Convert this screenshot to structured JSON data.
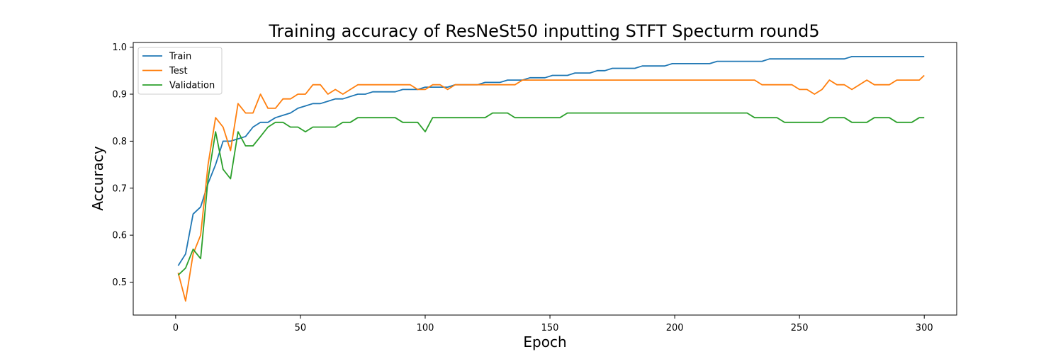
{
  "chart_data": {
    "type": "line",
    "title": "Training accuracy of ResNeSt50 inputting STFT Specturm round5",
    "xlabel": "Epoch",
    "ylabel": "Accuracy",
    "xlim": [
      -17,
      313
    ],
    "ylim": [
      0.43,
      1.01
    ],
    "xticks": [
      0,
      50,
      100,
      150,
      200,
      250,
      300
    ],
    "yticks": [
      0.5,
      0.6,
      0.7,
      0.8,
      0.9,
      1.0
    ],
    "xtick_labels": [
      "0",
      "50",
      "100",
      "150",
      "200",
      "250",
      "300"
    ],
    "ytick_labels": [
      "0.5",
      "0.6",
      "0.7",
      "0.8",
      "0.9",
      "1.0"
    ],
    "grid": false,
    "legend_position": "top-left",
    "x": [
      1,
      4,
      7,
      10,
      13,
      16,
      19,
      22,
      25,
      28,
      31,
      34,
      37,
      40,
      43,
      46,
      49,
      52,
      55,
      58,
      61,
      64,
      67,
      70,
      73,
      76,
      79,
      82,
      85,
      88,
      91,
      94,
      97,
      100,
      103,
      106,
      109,
      112,
      115,
      118,
      121,
      124,
      127,
      130,
      133,
      136,
      139,
      142,
      145,
      148,
      151,
      154,
      157,
      160,
      163,
      166,
      169,
      172,
      175,
      178,
      181,
      184,
      187,
      190,
      193,
      196,
      199,
      202,
      205,
      208,
      211,
      214,
      217,
      220,
      223,
      226,
      229,
      232,
      235,
      238,
      241,
      244,
      247,
      250,
      253,
      256,
      259,
      262,
      265,
      268,
      271,
      274,
      277,
      280,
      283,
      286,
      289,
      292,
      295,
      298,
      300
    ],
    "series": [
      {
        "name": "Train",
        "color": "#1f77b4",
        "values": [
          0.535,
          0.56,
          0.645,
          0.66,
          0.71,
          0.75,
          0.8,
          0.8,
          0.805,
          0.81,
          0.83,
          0.84,
          0.84,
          0.85,
          0.855,
          0.86,
          0.87,
          0.875,
          0.88,
          0.88,
          0.885,
          0.89,
          0.89,
          0.895,
          0.9,
          0.9,
          0.905,
          0.905,
          0.905,
          0.905,
          0.91,
          0.91,
          0.91,
          0.915,
          0.915,
          0.915,
          0.915,
          0.92,
          0.92,
          0.92,
          0.92,
          0.925,
          0.925,
          0.925,
          0.93,
          0.93,
          0.93,
          0.935,
          0.935,
          0.935,
          0.94,
          0.94,
          0.94,
          0.945,
          0.945,
          0.945,
          0.95,
          0.95,
          0.955,
          0.955,
          0.955,
          0.955,
          0.96,
          0.96,
          0.96,
          0.96,
          0.965,
          0.965,
          0.965,
          0.965,
          0.965,
          0.965,
          0.97,
          0.97,
          0.97,
          0.97,
          0.97,
          0.97,
          0.97,
          0.975,
          0.975,
          0.975,
          0.975,
          0.975,
          0.975,
          0.975,
          0.975,
          0.975,
          0.975,
          0.975,
          0.98,
          0.98,
          0.98,
          0.98,
          0.98,
          0.98,
          0.98,
          0.98,
          0.98,
          0.98,
          0.98
        ]
      },
      {
        "name": "Test",
        "color": "#ff7f0e",
        "values": [
          0.52,
          0.46,
          0.56,
          0.6,
          0.75,
          0.85,
          0.83,
          0.78,
          0.88,
          0.86,
          0.86,
          0.9,
          0.87,
          0.87,
          0.89,
          0.89,
          0.9,
          0.9,
          0.92,
          0.92,
          0.9,
          0.91,
          0.9,
          0.91,
          0.92,
          0.92,
          0.92,
          0.92,
          0.92,
          0.92,
          0.92,
          0.92,
          0.91,
          0.91,
          0.92,
          0.92,
          0.91,
          0.92,
          0.92,
          0.92,
          0.92,
          0.92,
          0.92,
          0.92,
          0.92,
          0.92,
          0.93,
          0.93,
          0.93,
          0.93,
          0.93,
          0.93,
          0.93,
          0.93,
          0.93,
          0.93,
          0.93,
          0.93,
          0.93,
          0.93,
          0.93,
          0.93,
          0.93,
          0.93,
          0.93,
          0.93,
          0.93,
          0.93,
          0.93,
          0.93,
          0.93,
          0.93,
          0.93,
          0.93,
          0.93,
          0.93,
          0.93,
          0.93,
          0.92,
          0.92,
          0.92,
          0.92,
          0.92,
          0.91,
          0.91,
          0.9,
          0.91,
          0.93,
          0.92,
          0.92,
          0.91,
          0.92,
          0.93,
          0.92,
          0.92,
          0.92,
          0.93,
          0.93,
          0.93,
          0.93,
          0.94
        ]
      },
      {
        "name": "Validation",
        "color": "#2ca02c",
        "values": [
          0.515,
          0.53,
          0.57,
          0.55,
          0.72,
          0.82,
          0.74,
          0.72,
          0.82,
          0.79,
          0.79,
          0.81,
          0.83,
          0.84,
          0.84,
          0.83,
          0.83,
          0.82,
          0.83,
          0.83,
          0.83,
          0.83,
          0.84,
          0.84,
          0.85,
          0.85,
          0.85,
          0.85,
          0.85,
          0.85,
          0.84,
          0.84,
          0.84,
          0.82,
          0.85,
          0.85,
          0.85,
          0.85,
          0.85,
          0.85,
          0.85,
          0.85,
          0.86,
          0.86,
          0.86,
          0.85,
          0.85,
          0.85,
          0.85,
          0.85,
          0.85,
          0.85,
          0.86,
          0.86,
          0.86,
          0.86,
          0.86,
          0.86,
          0.86,
          0.86,
          0.86,
          0.86,
          0.86,
          0.86,
          0.86,
          0.86,
          0.86,
          0.86,
          0.86,
          0.86,
          0.86,
          0.86,
          0.86,
          0.86,
          0.86,
          0.86,
          0.86,
          0.85,
          0.85,
          0.85,
          0.85,
          0.84,
          0.84,
          0.84,
          0.84,
          0.84,
          0.84,
          0.85,
          0.85,
          0.85,
          0.84,
          0.84,
          0.84,
          0.85,
          0.85,
          0.85,
          0.84,
          0.84,
          0.84,
          0.85,
          0.85
        ]
      }
    ]
  }
}
